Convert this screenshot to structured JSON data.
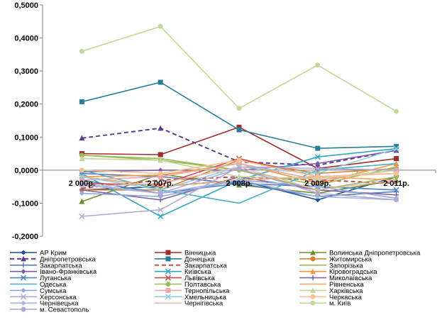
{
  "chart_data": {
    "type": "line",
    "categories": [
      "2 000р.",
      "2 007р.",
      "2 008р.",
      "2 009р.",
      "2 011р."
    ],
    "yticks": [
      "-0,2000",
      "-0,1000",
      "0,0000",
      "0,1000",
      "0,2000",
      "0,3000",
      "0,4000",
      "0,5000"
    ],
    "ylim": [
      -0.2,
      0.5
    ],
    "grid": false,
    "legend_position": "bottom",
    "series": [
      {
        "name": "АР Крим",
        "color": "#1f4e8c",
        "marker": "diamond",
        "dash": false,
        "values": [
          -0.06,
          -0.05,
          -0.03,
          -0.09,
          -0.02
        ]
      },
      {
        "name": "Вінницька",
        "color": "#a02b2b",
        "marker": "square",
        "dash": false,
        "values": [
          0.05,
          0.047,
          0.13,
          0.005,
          0.035
        ]
      },
      {
        "name": "Волинська Дніпропетровська",
        "color": "#6f8a2a",
        "marker": "triangle",
        "dash": false,
        "values": [
          -0.095,
          -0.012,
          -0.045,
          -0.07,
          -0.03
        ]
      },
      {
        "name": "Дніпропетровська",
        "color": "#5b3f87",
        "marker": "triangle",
        "dash": true,
        "values": [
          0.097,
          0.127,
          0.025,
          0.015,
          0.06
        ]
      },
      {
        "name": "Донецька",
        "color": "#2a7d96",
        "marker": "square",
        "dash": false,
        "values": [
          0.207,
          0.266,
          0.122,
          0.066,
          0.072
        ]
      },
      {
        "name": "Житомирська",
        "color": "#d9822b",
        "marker": "circle",
        "dash": false,
        "values": [
          -0.06,
          -0.06,
          0.03,
          -0.01,
          0.005
        ]
      },
      {
        "name": "Закарпатська",
        "color": "#5a7cc4",
        "marker": "plus",
        "dash": false,
        "values": [
          -0.01,
          -0.02,
          -0.04,
          -0.08,
          -0.065
        ]
      },
      {
        "name": "Закарпатська",
        "color": "#c0504d",
        "marker": "none",
        "dash": true,
        "values": [
          -0.055,
          -0.03,
          -0.02,
          -0.03,
          -0.04
        ]
      },
      {
        "name": "Запорізька",
        "color": "#9bbb59",
        "marker": "none",
        "dash": false,
        "values": [
          0.045,
          0.035,
          0.0,
          -0.045,
          0.01
        ]
      },
      {
        "name": "Івано-Франківська",
        "color": "#7b5aa6",
        "marker": "diamond",
        "dash": false,
        "values": [
          -0.005,
          0.0,
          0.0,
          0.02,
          0.06
        ]
      },
      {
        "name": "Київська",
        "color": "#31a5c4",
        "marker": "star",
        "dash": false,
        "values": [
          -0.01,
          -0.14,
          -0.03,
          0.04,
          0.065
        ]
      },
      {
        "name": "Кіровоградська",
        "color": "#f79646",
        "marker": "triangle",
        "dash": false,
        "values": [
          -0.02,
          -0.015,
          0.02,
          -0.04,
          0.02
        ]
      },
      {
        "name": "Луганська",
        "color": "#4f81bd",
        "marker": "star",
        "dash": false,
        "values": [
          -0.03,
          -0.07,
          -0.04,
          -0.05,
          -0.06
        ]
      },
      {
        "name": "Львівська",
        "color": "#c0504d",
        "marker": "star",
        "dash": false,
        "values": [
          -0.04,
          -0.045,
          0.035,
          -0.02,
          -0.01
        ]
      },
      {
        "name": "Миколаївська",
        "color": "#8064a2",
        "marker": "plus",
        "dash": false,
        "values": [
          -0.06,
          -0.09,
          -0.02,
          -0.06,
          -0.075
        ]
      },
      {
        "name": "Одеська",
        "color": "#4bacc6",
        "marker": "none",
        "dash": false,
        "values": [
          0.0,
          -0.06,
          -0.1,
          0.0,
          0.02
        ]
      },
      {
        "name": "Полтавська",
        "color": "#9bbb59",
        "marker": "circle",
        "dash": false,
        "values": [
          0.045,
          0.03,
          0.0,
          -0.06,
          -0.02
        ]
      },
      {
        "name": "Рівненська",
        "color": "#f4a460",
        "marker": "none",
        "dash": false,
        "values": [
          -0.02,
          -0.05,
          -0.03,
          -0.02,
          -0.03
        ]
      },
      {
        "name": "Сумська",
        "color": "#8ea9db",
        "marker": "diamond",
        "dash": false,
        "values": [
          -0.07,
          -0.08,
          -0.03,
          -0.05,
          -0.085
        ]
      },
      {
        "name": "Тернопільська",
        "color": "#e6a8a8",
        "marker": "square",
        "dash": false,
        "values": [
          -0.03,
          -0.02,
          0.02,
          -0.03,
          0.0
        ]
      },
      {
        "name": "Харківська",
        "color": "#c4d79b",
        "marker": "triangle",
        "dash": false,
        "values": [
          0.035,
          0.03,
          -0.02,
          -0.025,
          0.0
        ]
      },
      {
        "name": "Херсонська",
        "color": "#b4a7d6",
        "marker": "star",
        "dash": false,
        "values": [
          -0.14,
          -0.12,
          0.01,
          0.005,
          0.0
        ]
      },
      {
        "name": "Хмельницька",
        "color": "#92cddc",
        "marker": "star",
        "dash": false,
        "values": [
          -0.02,
          -0.06,
          0.01,
          -0.01,
          0.065
        ]
      },
      {
        "name": "Черкаська",
        "color": "#fac090",
        "marker": "circle",
        "dash": false,
        "values": [
          0.0,
          -0.01,
          0.03,
          -0.02,
          -0.01
        ]
      },
      {
        "name": "Чернівецька",
        "color": "#a6b8e0",
        "marker": "diamond",
        "dash": false,
        "values": [
          -0.04,
          -0.07,
          -0.03,
          -0.08,
          -0.09
        ]
      },
      {
        "name": "Чернігівська",
        "color": "#e6b9b8",
        "marker": "none",
        "dash": false,
        "values": [
          -0.05,
          -0.04,
          0.01,
          -0.06,
          -0.03
        ]
      },
      {
        "name": "м. Київ",
        "color": "#c4d79b",
        "marker": "circle",
        "dash": false,
        "values": [
          0.36,
          0.435,
          0.187,
          0.318,
          0.178
        ]
      },
      {
        "name": "м. Севастополь",
        "color": "#b4a7d6",
        "marker": "circle",
        "dash": false,
        "values": [
          -0.045,
          -0.07,
          0.005,
          -0.07,
          -0.09
        ]
      }
    ]
  }
}
